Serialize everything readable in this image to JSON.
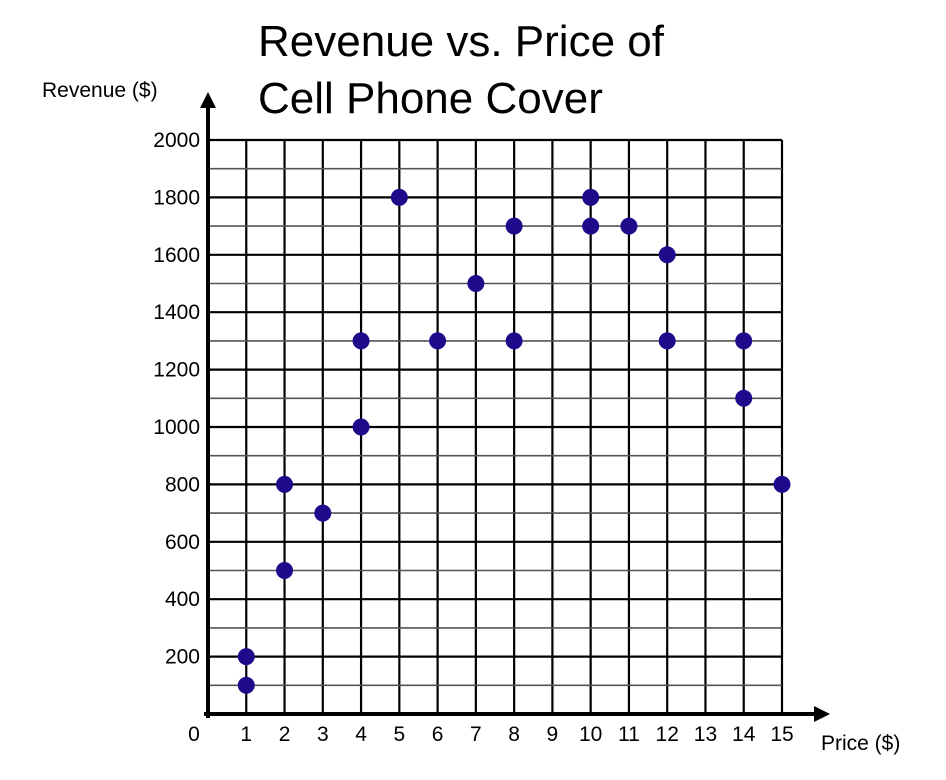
{
  "chart_data": {
    "type": "scatter",
    "title_lines": [
      "Revenue vs. Price of",
      "Cell Phone Cover"
    ],
    "xlabel": "Price ($)",
    "ylabel": "Revenue ($)",
    "xlim": [
      0,
      15
    ],
    "ylim": [
      0,
      2000
    ],
    "origin_label": "0",
    "x_ticks": [
      1,
      2,
      3,
      4,
      5,
      6,
      7,
      8,
      9,
      10,
      11,
      12,
      13,
      14,
      15
    ],
    "y_ticks": [
      200,
      400,
      600,
      800,
      1000,
      1200,
      1400,
      1600,
      1800,
      2000
    ],
    "grid": true,
    "marker_color": "#1f0a8c",
    "points": [
      {
        "x": 1,
        "y": 100
      },
      {
        "x": 1,
        "y": 200
      },
      {
        "x": 2,
        "y": 500
      },
      {
        "x": 2,
        "y": 800
      },
      {
        "x": 3,
        "y": 700
      },
      {
        "x": 4,
        "y": 1000
      },
      {
        "x": 4,
        "y": 1300
      },
      {
        "x": 5,
        "y": 1800
      },
      {
        "x": 6,
        "y": 1300
      },
      {
        "x": 7,
        "y": 1500
      },
      {
        "x": 8,
        "y": 1300
      },
      {
        "x": 8,
        "y": 1700
      },
      {
        "x": 10,
        "y": 1700
      },
      {
        "x": 10,
        "y": 1800
      },
      {
        "x": 11,
        "y": 1700
      },
      {
        "x": 12,
        "y": 1300
      },
      {
        "x": 12,
        "y": 1600
      },
      {
        "x": 14,
        "y": 1100
      },
      {
        "x": 14,
        "y": 1300
      },
      {
        "x": 15,
        "y": 800
      }
    ]
  }
}
